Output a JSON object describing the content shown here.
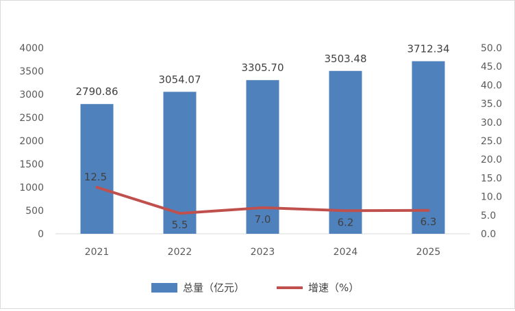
{
  "chart_data": {
    "type": "bar",
    "categories": [
      "2021",
      "2022",
      "2023",
      "2024",
      "2025"
    ],
    "series": [
      {
        "name": "总量（亿元）",
        "type": "bar",
        "axis": "left",
        "color": "#4f81bd",
        "values": [
          2790.86,
          3054.07,
          3305.7,
          3503.48,
          3712.34
        ],
        "labels": [
          "2790.86",
          "3054.07",
          "3305.70",
          "3503.48",
          "3712.34"
        ]
      },
      {
        "name": "增速（%）",
        "type": "line",
        "axis": "right",
        "color": "#c0504d",
        "values": [
          12.5,
          5.5,
          7.0,
          6.2,
          6.3
        ],
        "labels": [
          "12.5",
          "5.5",
          "7.0",
          "6.2",
          "6.3"
        ]
      }
    ],
    "y_left": {
      "ylim": [
        0,
        4000
      ],
      "ticks": [
        "0",
        "500",
        "1000",
        "1500",
        "2000",
        "2500",
        "3000",
        "3500",
        "4000"
      ]
    },
    "y_right": {
      "ylim": [
        0,
        50
      ],
      "ticks": [
        "0.0",
        "5.0",
        "10.0",
        "15.0",
        "20.0",
        "25.0",
        "30.0",
        "35.0",
        "40.0",
        "45.0",
        "50.0"
      ]
    },
    "grid": false,
    "legend": "bottom"
  }
}
